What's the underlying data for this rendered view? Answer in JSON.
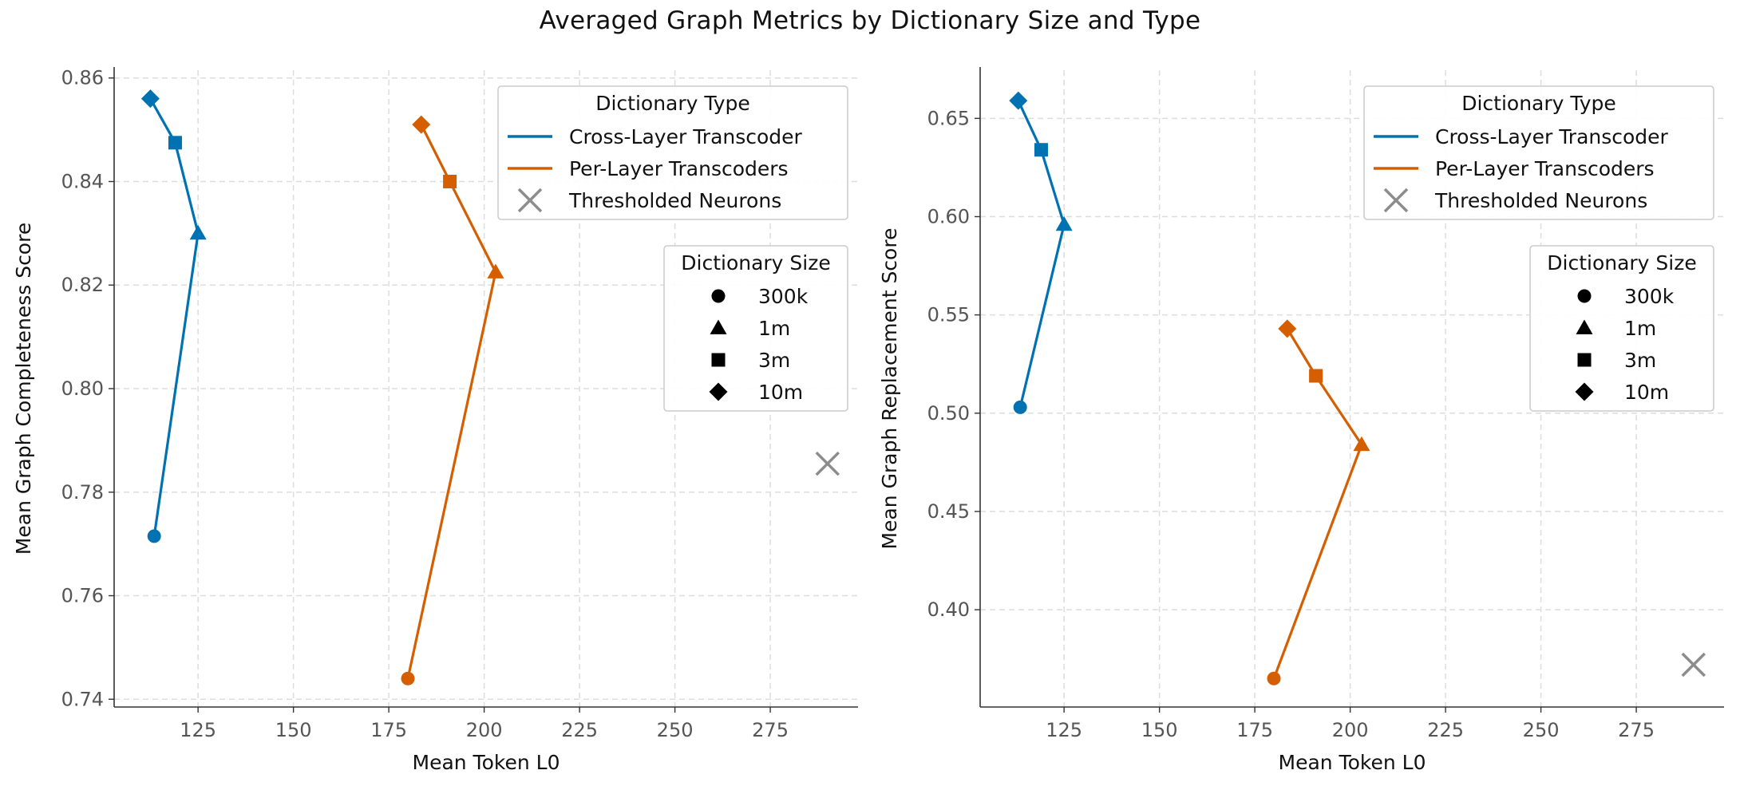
{
  "figure": {
    "title": "Averaged Graph Metrics by Dictionary Size and Type"
  },
  "colors": {
    "clt": "#0072B2",
    "plt": "#D55E00",
    "neurons": "#8C8C8C",
    "grid": "#DDDDDD",
    "axis": "#333333"
  },
  "legend": {
    "type_title": "Dictionary Type",
    "types": [
      "Cross-Layer Transcoder",
      "Per-Layer Transcoders",
      "Thresholded Neurons"
    ],
    "size_title": "Dictionary Size",
    "sizes": [
      {
        "label": "300k",
        "marker": "circle"
      },
      {
        "label": "1m",
        "marker": "triangle"
      },
      {
        "label": "3m",
        "marker": "square"
      },
      {
        "label": "10m",
        "marker": "diamond"
      }
    ]
  },
  "chart_data": [
    {
      "type": "line",
      "title": "",
      "xlabel": "Mean Token L0",
      "ylabel": "Mean Graph Completeness Score",
      "xlim": [
        103,
        298
      ],
      "ylim": [
        0.7385,
        0.8615
      ],
      "xticks": [
        125,
        150,
        175,
        200,
        225,
        250,
        275
      ],
      "yticks": [
        0.74,
        0.76,
        0.78,
        0.8,
        0.82,
        0.84,
        0.86
      ],
      "ytick_labels": [
        "0.74",
        "0.76",
        "0.78",
        "0.80",
        "0.82",
        "0.84",
        "0.86"
      ],
      "grid": true,
      "legend_placement": "top-right",
      "series": [
        {
          "name": "Cross-Layer Transcoder",
          "color_key": "clt",
          "points": [
            {
              "x": 113.5,
              "y": 0.7715,
              "size": "300k"
            },
            {
              "x": 125.0,
              "y": 0.83,
              "size": "1m"
            },
            {
              "x": 119.0,
              "y": 0.8475,
              "size": "3m"
            },
            {
              "x": 112.5,
              "y": 0.856,
              "size": "10m"
            }
          ]
        },
        {
          "name": "Per-Layer Transcoders",
          "color_key": "plt",
          "points": [
            {
              "x": 180.0,
              "y": 0.744,
              "size": "300k"
            },
            {
              "x": 203.0,
              "y": 0.8225,
              "size": "1m"
            },
            {
              "x": 191.0,
              "y": 0.84,
              "size": "3m"
            },
            {
              "x": 183.5,
              "y": 0.851,
              "size": "10m"
            }
          ]
        },
        {
          "name": "Thresholded Neurons",
          "color_key": "neurons",
          "marker": "x",
          "points": [
            {
              "x": 290.0,
              "y": 0.7855
            }
          ]
        }
      ]
    },
    {
      "type": "line",
      "title": "",
      "xlabel": "Mean Token L0",
      "ylabel": "Mean Graph Replacement Score",
      "xlim": [
        103,
        298
      ],
      "ylim": [
        0.3505,
        0.6745
      ],
      "xticks": [
        125,
        150,
        175,
        200,
        225,
        250,
        275
      ],
      "yticks": [
        0.4,
        0.45,
        0.5,
        0.55,
        0.6,
        0.65
      ],
      "ytick_labels": [
        "0.40",
        "0.45",
        "0.50",
        "0.55",
        "0.60",
        "0.65"
      ],
      "grid": true,
      "legend_placement": "top-right",
      "series": [
        {
          "name": "Cross-Layer Transcoder",
          "color_key": "clt",
          "points": [
            {
              "x": 113.5,
              "y": 0.503,
              "size": "300k"
            },
            {
              "x": 125.0,
              "y": 0.596,
              "size": "1m"
            },
            {
              "x": 119.0,
              "y": 0.634,
              "size": "3m"
            },
            {
              "x": 113.0,
              "y": 0.659,
              "size": "10m"
            }
          ]
        },
        {
          "name": "Per-Layer Transcoders",
          "color_key": "plt",
          "points": [
            {
              "x": 180.0,
              "y": 0.365,
              "size": "300k"
            },
            {
              "x": 203.0,
              "y": 0.484,
              "size": "1m"
            },
            {
              "x": 191.0,
              "y": 0.519,
              "size": "3m"
            },
            {
              "x": 183.5,
              "y": 0.543,
              "size": "10m"
            }
          ]
        },
        {
          "name": "Thresholded Neurons",
          "color_key": "neurons",
          "marker": "x",
          "points": [
            {
              "x": 290.0,
              "y": 0.372
            }
          ]
        }
      ]
    }
  ]
}
